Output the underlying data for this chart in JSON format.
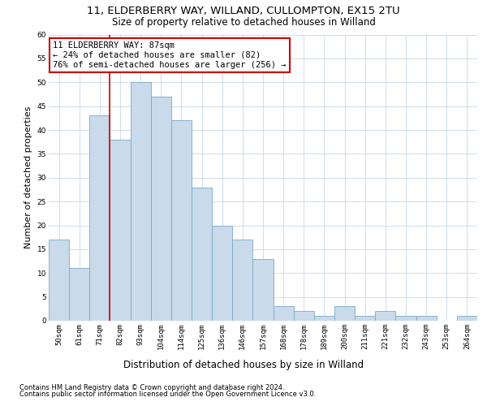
{
  "title1": "11, ELDERBERRY WAY, WILLAND, CULLOMPTON, EX15 2TU",
  "title2": "Size of property relative to detached houses in Willand",
  "xlabel": "Distribution of detached houses by size in Willand",
  "ylabel": "Number of detached properties",
  "bar_labels": [
    "50sqm",
    "61sqm",
    "71sqm",
    "82sqm",
    "93sqm",
    "104sqm",
    "114sqm",
    "125sqm",
    "136sqm",
    "146sqm",
    "157sqm",
    "168sqm",
    "178sqm",
    "189sqm",
    "200sqm",
    "211sqm",
    "221sqm",
    "232sqm",
    "243sqm",
    "253sqm",
    "264sqm"
  ],
  "bar_values": [
    17,
    11,
    43,
    38,
    50,
    47,
    42,
    28,
    20,
    17,
    13,
    3,
    2,
    1,
    3,
    1,
    2,
    1,
    1,
    0,
    1
  ],
  "bar_color": "#c9daea",
  "bar_edge_color": "#7aaac8",
  "annotation_text": "11 ELDERBERRY WAY: 87sqm\n← 24% of detached houses are smaller (82)\n76% of semi-detached houses are larger (256) →",
  "annotation_box_color": "#ffffff",
  "annotation_box_edge": "#cc0000",
  "vline_color": "#cc0000",
  "vline_bar_index": 3,
  "ylim": [
    0,
    60
  ],
  "yticks": [
    0,
    5,
    10,
    15,
    20,
    25,
    30,
    35,
    40,
    45,
    50,
    55,
    60
  ],
  "footnote1": "Contains HM Land Registry data © Crown copyright and database right 2024.",
  "footnote2": "Contains public sector information licensed under the Open Government Licence v3.0.",
  "bg_color": "#ffffff",
  "grid_color": "#c8d8e8",
  "title_fontsize": 9.5,
  "subtitle_fontsize": 8.5,
  "tick_fontsize": 6.5,
  "ylabel_fontsize": 8,
  "xlabel_fontsize": 8.5,
  "annot_fontsize": 7.5,
  "footnote_fontsize": 6
}
